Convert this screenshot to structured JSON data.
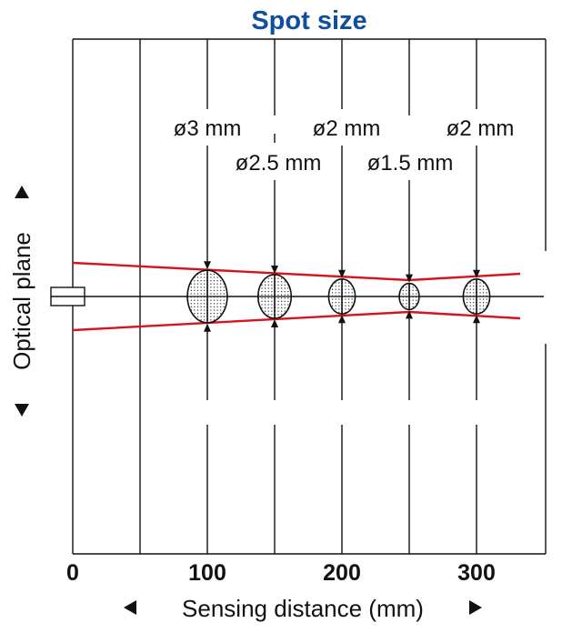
{
  "title": "Spot size",
  "x_axis": {
    "label": "Sensing distance (mm)",
    "ticks": [
      "0",
      "100",
      "200",
      "300"
    ]
  },
  "y_axis": {
    "label": "Optical plane"
  },
  "spots": [
    {
      "distance": 100,
      "label": "ø3 mm"
    },
    {
      "distance": 150,
      "label": "ø2.5 mm"
    },
    {
      "distance": 200,
      "label": "ø2 mm"
    },
    {
      "distance": 250,
      "label": "ø1.5 mm"
    },
    {
      "distance": 300,
      "label": "ø2 mm"
    }
  ],
  "colors": {
    "title": "#0f4fa0",
    "beam": "#d7141d",
    "lines": "#111111"
  }
}
